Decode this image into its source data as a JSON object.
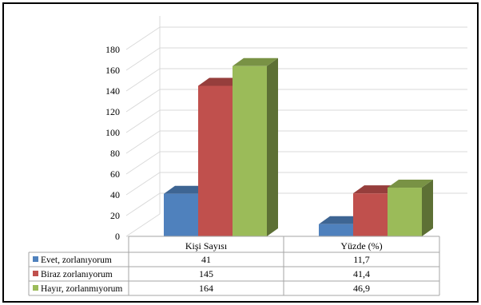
{
  "chart_data": {
    "type": "bar",
    "categories": [
      "Kişi Sayısı",
      "Yüzde (%)"
    ],
    "series": [
      {
        "name": "Evet, zorlanıyorum",
        "values": [
          41,
          11.7
        ],
        "labels": [
          "41",
          "11,7"
        ],
        "color": "#4F81BD"
      },
      {
        "name": "Biraz zorlanıyorum",
        "values": [
          145,
          41.4
        ],
        "labels": [
          "145",
          "41,4"
        ],
        "color": "#C0504D"
      },
      {
        "name": "Hayır, zorlanmıyorum",
        "values": [
          164,
          46.9
        ],
        "labels": [
          "164",
          "46,9"
        ],
        "color": "#9BBB59"
      }
    ],
    "ylim": [
      0,
      180
    ],
    "yticks": [
      "0",
      "20",
      "40",
      "60",
      "80",
      "100",
      "120",
      "140",
      "160",
      "180"
    ],
    "grid": true,
    "legend": "table",
    "style": "3d-column"
  }
}
